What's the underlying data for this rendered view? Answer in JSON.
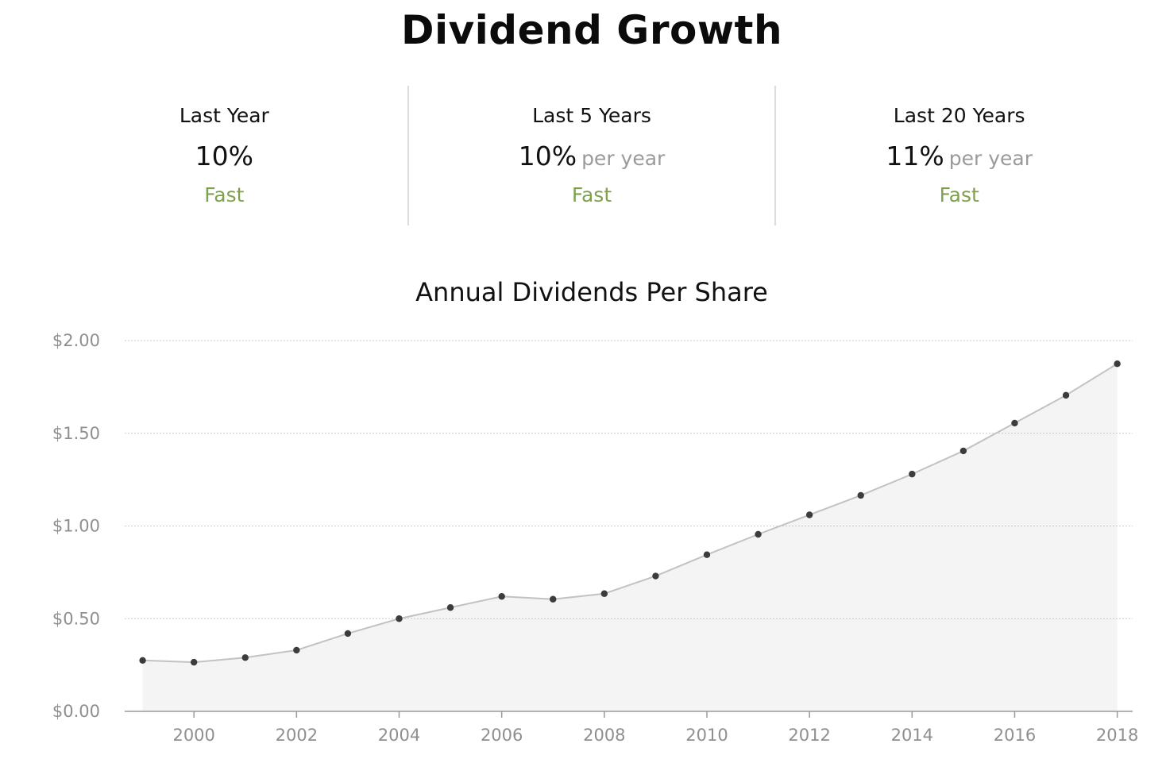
{
  "header": {
    "title": "Dividend Growth"
  },
  "stats": [
    {
      "label": "Last Year",
      "value": "10%",
      "suffix": "",
      "rating": "Fast"
    },
    {
      "label": "Last 5 Years",
      "value": "10%",
      "suffix": "per year",
      "rating": "Fast"
    },
    {
      "label": "Last 20 Years",
      "value": "11%",
      "suffix": "per year",
      "rating": "Fast"
    }
  ],
  "colors": {
    "rating": "#7ea14e",
    "line": "#c2c2c2",
    "area": "#f4f4f4",
    "point": "#3c3c3c",
    "grid": "#c8c8c8",
    "tick": "#8f8f8f"
  },
  "chart_data": {
    "type": "area",
    "title": "Annual Dividends Per Share",
    "xlabel": "",
    "ylabel": "",
    "x": [
      1999,
      2000,
      2001,
      2002,
      2003,
      2004,
      2005,
      2006,
      2007,
      2008,
      2009,
      2010,
      2011,
      2012,
      2013,
      2014,
      2015,
      2016,
      2017,
      2018
    ],
    "series": [
      {
        "values": [
          0.275,
          0.265,
          0.29,
          0.33,
          0.42,
          0.5,
          0.56,
          0.62,
          0.605,
          0.635,
          0.73,
          0.845,
          0.955,
          1.06,
          1.165,
          1.28,
          1.405,
          1.555,
          1.705,
          1.875
        ]
      }
    ],
    "xlim": [
      1998.65,
      2018.3
    ],
    "ylim": [
      0,
      2
    ],
    "x_ticks": [
      2000,
      2002,
      2004,
      2006,
      2008,
      2010,
      2012,
      2014,
      2016,
      2018
    ],
    "x_tick_labels": [
      "2000",
      "2002",
      "2004",
      "2006",
      "2008",
      "2010",
      "2012",
      "2014",
      "2016",
      "2018"
    ],
    "y_ticks": [
      0,
      0.5,
      1,
      1.5,
      2
    ],
    "y_tick_labels": [
      "$0.00",
      "$0.50",
      "$1.00",
      "$1.50",
      "$2.00"
    ],
    "grid": true,
    "legend": "none"
  }
}
